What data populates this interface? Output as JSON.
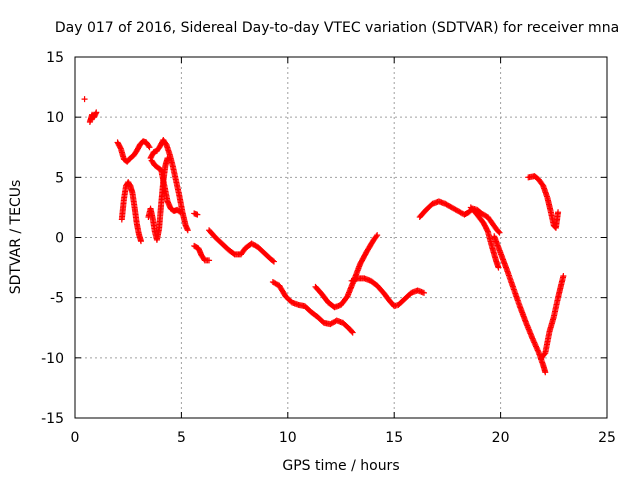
{
  "chart_data": {
    "type": "scatter",
    "title": "Day 017 of 2016, Sidereal Day-to-day VTEC variation (SDTVAR) for receiver mna",
    "xlabel": "GPS time / hours",
    "ylabel": "SDTVAR / TECUs",
    "xlim": [
      0,
      25
    ],
    "ylim": [
      -15,
      15
    ],
    "xticks": [
      0,
      5,
      10,
      15,
      20,
      25
    ],
    "yticks": [
      -15,
      -10,
      -5,
      0,
      5,
      10,
      15
    ],
    "grid": true,
    "marker": "plus",
    "color": "#ff0000",
    "segments": [
      [
        [
          0.45,
          11.5
        ]
      ],
      [
        [
          0.7,
          9.6
        ],
        [
          0.8,
          10.2
        ],
        [
          0.9,
          10.0
        ],
        [
          1.0,
          10.4
        ]
      ],
      [
        [
          2.0,
          7.9
        ],
        [
          2.15,
          7.4
        ],
        [
          2.3,
          6.5
        ],
        [
          2.45,
          6.3
        ],
        [
          2.6,
          6.6
        ],
        [
          2.75,
          6.8
        ],
        [
          2.9,
          7.2
        ],
        [
          3.05,
          7.7
        ],
        [
          3.2,
          8.0
        ],
        [
          3.35,
          7.9
        ],
        [
          3.5,
          7.5
        ]
      ],
      [
        [
          2.2,
          1.5
        ],
        [
          2.3,
          3.2
        ],
        [
          2.4,
          4.3
        ],
        [
          2.5,
          4.6
        ],
        [
          2.6,
          4.3
        ],
        [
          2.7,
          3.7
        ],
        [
          2.8,
          2.5
        ],
        [
          2.9,
          1.2
        ],
        [
          3.0,
          0.3
        ],
        [
          3.1,
          -0.3
        ]
      ],
      [
        [
          3.45,
          1.7
        ],
        [
          3.55,
          2.4
        ],
        [
          3.65,
          1.6
        ],
        [
          3.75,
          0.5
        ],
        [
          3.85,
          -0.2
        ],
        [
          3.95,
          0.7
        ],
        [
          4.05,
          2.8
        ],
        [
          4.15,
          4.7
        ],
        [
          4.25,
          6.0
        ],
        [
          4.35,
          6.6
        ]
      ],
      [
        [
          3.55,
          6.6
        ],
        [
          3.7,
          7.1
        ],
        [
          3.85,
          7.2
        ],
        [
          4.0,
          7.6
        ],
        [
          4.15,
          8.1
        ],
        [
          4.3,
          7.7
        ],
        [
          4.45,
          6.9
        ],
        [
          4.6,
          5.9
        ],
        [
          4.75,
          4.7
        ],
        [
          4.9,
          3.5
        ],
        [
          5.05,
          2.1
        ],
        [
          5.2,
          1.0
        ],
        [
          5.3,
          0.6
        ]
      ],
      [
        [
          3.6,
          6.4
        ],
        [
          3.75,
          6.0
        ],
        [
          3.9,
          5.8
        ],
        [
          4.05,
          5.6
        ],
        [
          4.2,
          4.3
        ],
        [
          4.35,
          3.0
        ],
        [
          4.5,
          2.4
        ],
        [
          4.65,
          2.2
        ],
        [
          4.8,
          2.3
        ],
        [
          4.95,
          2.1
        ]
      ],
      [
        [
          5.6,
          2.0
        ],
        [
          5.75,
          1.9
        ]
      ],
      [
        [
          5.6,
          -0.7
        ],
        [
          5.8,
          -0.9
        ],
        [
          5.95,
          -1.5
        ],
        [
          6.1,
          -1.9
        ],
        [
          6.3,
          -1.9
        ]
      ],
      [
        [
          6.3,
          0.6
        ],
        [
          6.6,
          0.0
        ],
        [
          6.9,
          -0.5
        ],
        [
          7.2,
          -1.0
        ],
        [
          7.5,
          -1.4
        ],
        [
          7.8,
          -1.4
        ],
        [
          8.0,
          -0.9
        ],
        [
          8.3,
          -0.5
        ],
        [
          8.6,
          -0.8
        ],
        [
          8.9,
          -1.3
        ],
        [
          9.2,
          -1.8
        ],
        [
          9.35,
          -2.0
        ]
      ],
      [
        [
          9.3,
          -3.7
        ],
        [
          9.6,
          -4.0
        ],
        [
          9.9,
          -4.9
        ],
        [
          10.2,
          -5.4
        ],
        [
          10.5,
          -5.6
        ],
        [
          10.8,
          -5.7
        ],
        [
          11.1,
          -6.2
        ],
        [
          11.4,
          -6.6
        ],
        [
          11.7,
          -7.1
        ],
        [
          12.0,
          -7.2
        ],
        [
          12.3,
          -6.9
        ],
        [
          12.6,
          -7.1
        ],
        [
          12.9,
          -7.6
        ],
        [
          13.05,
          -7.9
        ]
      ],
      [
        [
          11.3,
          -4.1
        ],
        [
          11.6,
          -4.7
        ],
        [
          11.9,
          -5.4
        ],
        [
          12.2,
          -5.8
        ],
        [
          12.5,
          -5.6
        ],
        [
          12.8,
          -4.9
        ],
        [
          13.1,
          -3.6
        ],
        [
          13.4,
          -2.2
        ],
        [
          13.7,
          -1.2
        ],
        [
          14.0,
          -0.3
        ],
        [
          14.2,
          0.2
        ]
      ],
      [
        [
          13.0,
          -3.6
        ],
        [
          13.3,
          -3.4
        ],
        [
          13.6,
          -3.4
        ],
        [
          13.9,
          -3.6
        ],
        [
          14.2,
          -4.0
        ],
        [
          14.5,
          -4.6
        ],
        [
          14.8,
          -5.3
        ],
        [
          15.0,
          -5.7
        ],
        [
          15.2,
          -5.6
        ],
        [
          15.5,
          -5.1
        ],
        [
          15.8,
          -4.6
        ],
        [
          16.1,
          -4.4
        ],
        [
          16.4,
          -4.6
        ]
      ],
      [
        [
          16.2,
          1.7
        ],
        [
          16.5,
          2.3
        ],
        [
          16.8,
          2.8
        ],
        [
          17.1,
          3.0
        ],
        [
          17.4,
          2.8
        ],
        [
          17.7,
          2.5
        ],
        [
          18.0,
          2.2
        ],
        [
          18.3,
          1.9
        ],
        [
          18.5,
          2.1
        ],
        [
          18.7,
          2.4
        ],
        [
          18.9,
          2.3
        ],
        [
          19.1,
          2.0
        ],
        [
          19.4,
          1.7
        ],
        [
          19.6,
          1.2
        ],
        [
          19.8,
          0.7
        ],
        [
          19.95,
          0.4
        ]
      ],
      [
        [
          18.6,
          2.5
        ],
        [
          18.9,
          1.9
        ],
        [
          19.2,
          1.2
        ],
        [
          19.4,
          0.5
        ],
        [
          19.6,
          -0.8
        ],
        [
          19.8,
          -2.0
        ],
        [
          19.9,
          -2.5
        ]
      ],
      [
        [
          19.7,
          0.1
        ],
        [
          20.0,
          -1.3
        ],
        [
          20.3,
          -2.7
        ],
        [
          20.6,
          -4.2
        ],
        [
          20.9,
          -5.7
        ],
        [
          21.2,
          -7.1
        ],
        [
          21.5,
          -8.4
        ],
        [
          21.8,
          -9.6
        ],
        [
          22.0,
          -10.6
        ],
        [
          22.1,
          -11.2
        ]
      ],
      [
        [
          21.9,
          -10.1
        ],
        [
          22.0,
          -9.8
        ],
        [
          22.1,
          -9.6
        ],
        [
          22.3,
          -7.8
        ],
        [
          22.5,
          -6.6
        ],
        [
          22.7,
          -5.0
        ],
        [
          22.85,
          -3.9
        ],
        [
          22.95,
          -3.2
        ]
      ],
      [
        [
          21.3,
          5.0
        ],
        [
          21.6,
          5.1
        ],
        [
          21.8,
          4.8
        ],
        [
          22.0,
          4.3
        ],
        [
          22.2,
          3.3
        ],
        [
          22.35,
          2.2
        ],
        [
          22.5,
          1.0
        ],
        [
          22.6,
          0.8
        ],
        [
          22.7,
          2.1
        ]
      ]
    ]
  }
}
